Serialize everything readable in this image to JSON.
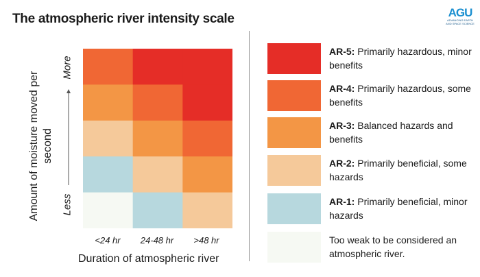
{
  "title": "The atmospheric river intensity scale",
  "logo": {
    "text": "AGU",
    "tagline1": "ADVANCING EARTH",
    "tagline2": "AND SPACE SCIENCE"
  },
  "colors": {
    "AR-5": "#e52d27",
    "AR-4": "#f06734",
    "AR-3": "#f39645",
    "AR-2": "#f5c99a",
    "AR-1": "#b7d8de",
    "weak": "#f6f9f3"
  },
  "chart_data": {
    "type": "heatmap",
    "title": "The atmospheric river intensity scale",
    "xlabel": "Duration of atmospheric river",
    "ylabel": "Amount of moisture moved per second",
    "x_categories": [
      "<24 hr",
      "24-48 hr",
      ">48 hr"
    ],
    "y_low": "Less",
    "y_high": "More",
    "rows_top_to_bottom": [
      [
        "AR-4",
        "AR-5",
        "AR-5"
      ],
      [
        "AR-3",
        "AR-4",
        "AR-5"
      ],
      [
        "AR-2",
        "AR-3",
        "AR-4"
      ],
      [
        "AR-1",
        "AR-2",
        "AR-3"
      ],
      [
        "weak",
        "AR-1",
        "AR-2"
      ]
    ]
  },
  "legend": [
    {
      "key": "AR-5",
      "label": "AR-5:",
      "desc": " Primarily hazardous, minor benefits"
    },
    {
      "key": "AR-4",
      "label": "AR-4:",
      "desc": " Primarily hazardous, some benefits"
    },
    {
      "key": "AR-3",
      "label": "AR-3:",
      "desc": " Balanced hazards and benefits"
    },
    {
      "key": "AR-2",
      "label": "AR-2:",
      "desc": " Primarily beneficial, some hazards"
    },
    {
      "key": "AR-1",
      "label": "AR-1:",
      "desc": " Primarily beneficial, minor hazards"
    },
    {
      "key": "weak",
      "label": "",
      "desc": "Too weak to be considered an atmospheric river."
    }
  ]
}
